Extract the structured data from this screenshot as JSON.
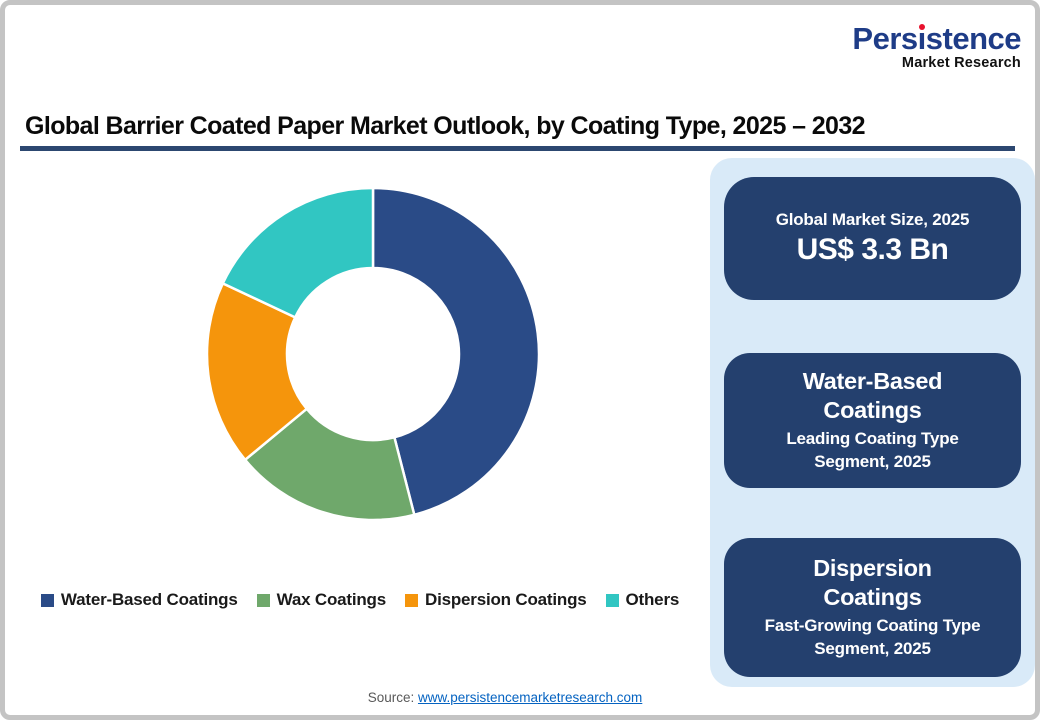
{
  "brand": {
    "logo_part1": "Pers",
    "logo_dotless_i": "ı",
    "logo_part2": "stence",
    "logo_subtitle": "Market Research",
    "logo_color": "#1e3c87",
    "logo_dot_color": "#e8112d"
  },
  "header": {
    "title": "Global Barrier Coated Paper Market Outlook, by Coating Type, 2025 – 2032",
    "rule_color": "#2c4770"
  },
  "chart_data": {
    "type": "pie",
    "subtype": "donut",
    "title": "Global Barrier Coated Paper Market Outlook, by Coating Type, 2025 – 2032",
    "categories": [
      "Water-Based Coatings",
      "Wax Coatings",
      "Dispersion Coatings",
      "Others"
    ],
    "values": [
      46,
      18,
      18,
      18
    ],
    "values_estimated_from_arc_angles": true,
    "colors": [
      "#2a4b87",
      "#6fa86b",
      "#f5950c",
      "#31c6c2"
    ],
    "start_angle_deg": 0,
    "direction": "clockwise",
    "inner_radius_ratio": 0.52,
    "slice_border_color": "#ffffff",
    "legend_position": "bottom"
  },
  "panel": {
    "bg_color": "#d9eaf8",
    "card_color": "#24406e",
    "cards": [
      {
        "title": "Global Market Size, 2025",
        "value": "US$ 3.3 Bn"
      },
      {
        "title": "Water-Based Coatings",
        "subtitle": "Leading Coating Type Segment, 2025"
      },
      {
        "title": "Dispersion Coatings",
        "subtitle": "Fast-Growing Coating Type Segment, 2025"
      }
    ]
  },
  "footer": {
    "source_label": "Source: ",
    "source_link": "www.persistencemarketresearch.com",
    "link_color": "#0563c1"
  }
}
